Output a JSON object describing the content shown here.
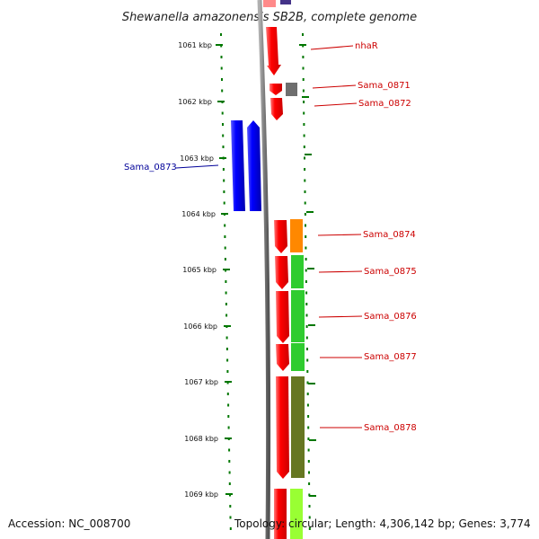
{
  "title": "Shewanella amazonensis SB2B, complete genome",
  "footer": {
    "accession": "Accession: NC_008700",
    "topology": "Topology: circular; Length: 4,306,142 bp; Genes: 3,774"
  },
  "scale_labels": [
    "1061 kbp",
    "1062 kbp",
    "1063 kbp",
    "1064 kbp",
    "1065 kbp",
    "1066 kbp",
    "1067 kbp",
    "1068 kbp",
    "1069 kbp"
  ],
  "gene_labels": {
    "nhaR": "nhaR",
    "sama_0871": "Sama_0871",
    "sama_0872": "Sama_0872",
    "sama_0873": "Sama_0873",
    "sama_0874": "Sama_0874",
    "sama_0875": "Sama_0875",
    "sama_0876": "Sama_0876",
    "sama_0877": "Sama_0877",
    "sama_0878": "Sama_0878"
  },
  "colors": {
    "forward_gene": "#ff0000",
    "reverse_gene": "#0000ff",
    "label_forward": "#cc0000",
    "label_reverse": "#000099",
    "backbone": "#808080",
    "ticks": "#007700",
    "orange": "#ff8800",
    "green": "#33cc33",
    "olive": "#667722",
    "lime": "#99ff33",
    "dark_gray": "#666666",
    "purple": "#443388"
  }
}
